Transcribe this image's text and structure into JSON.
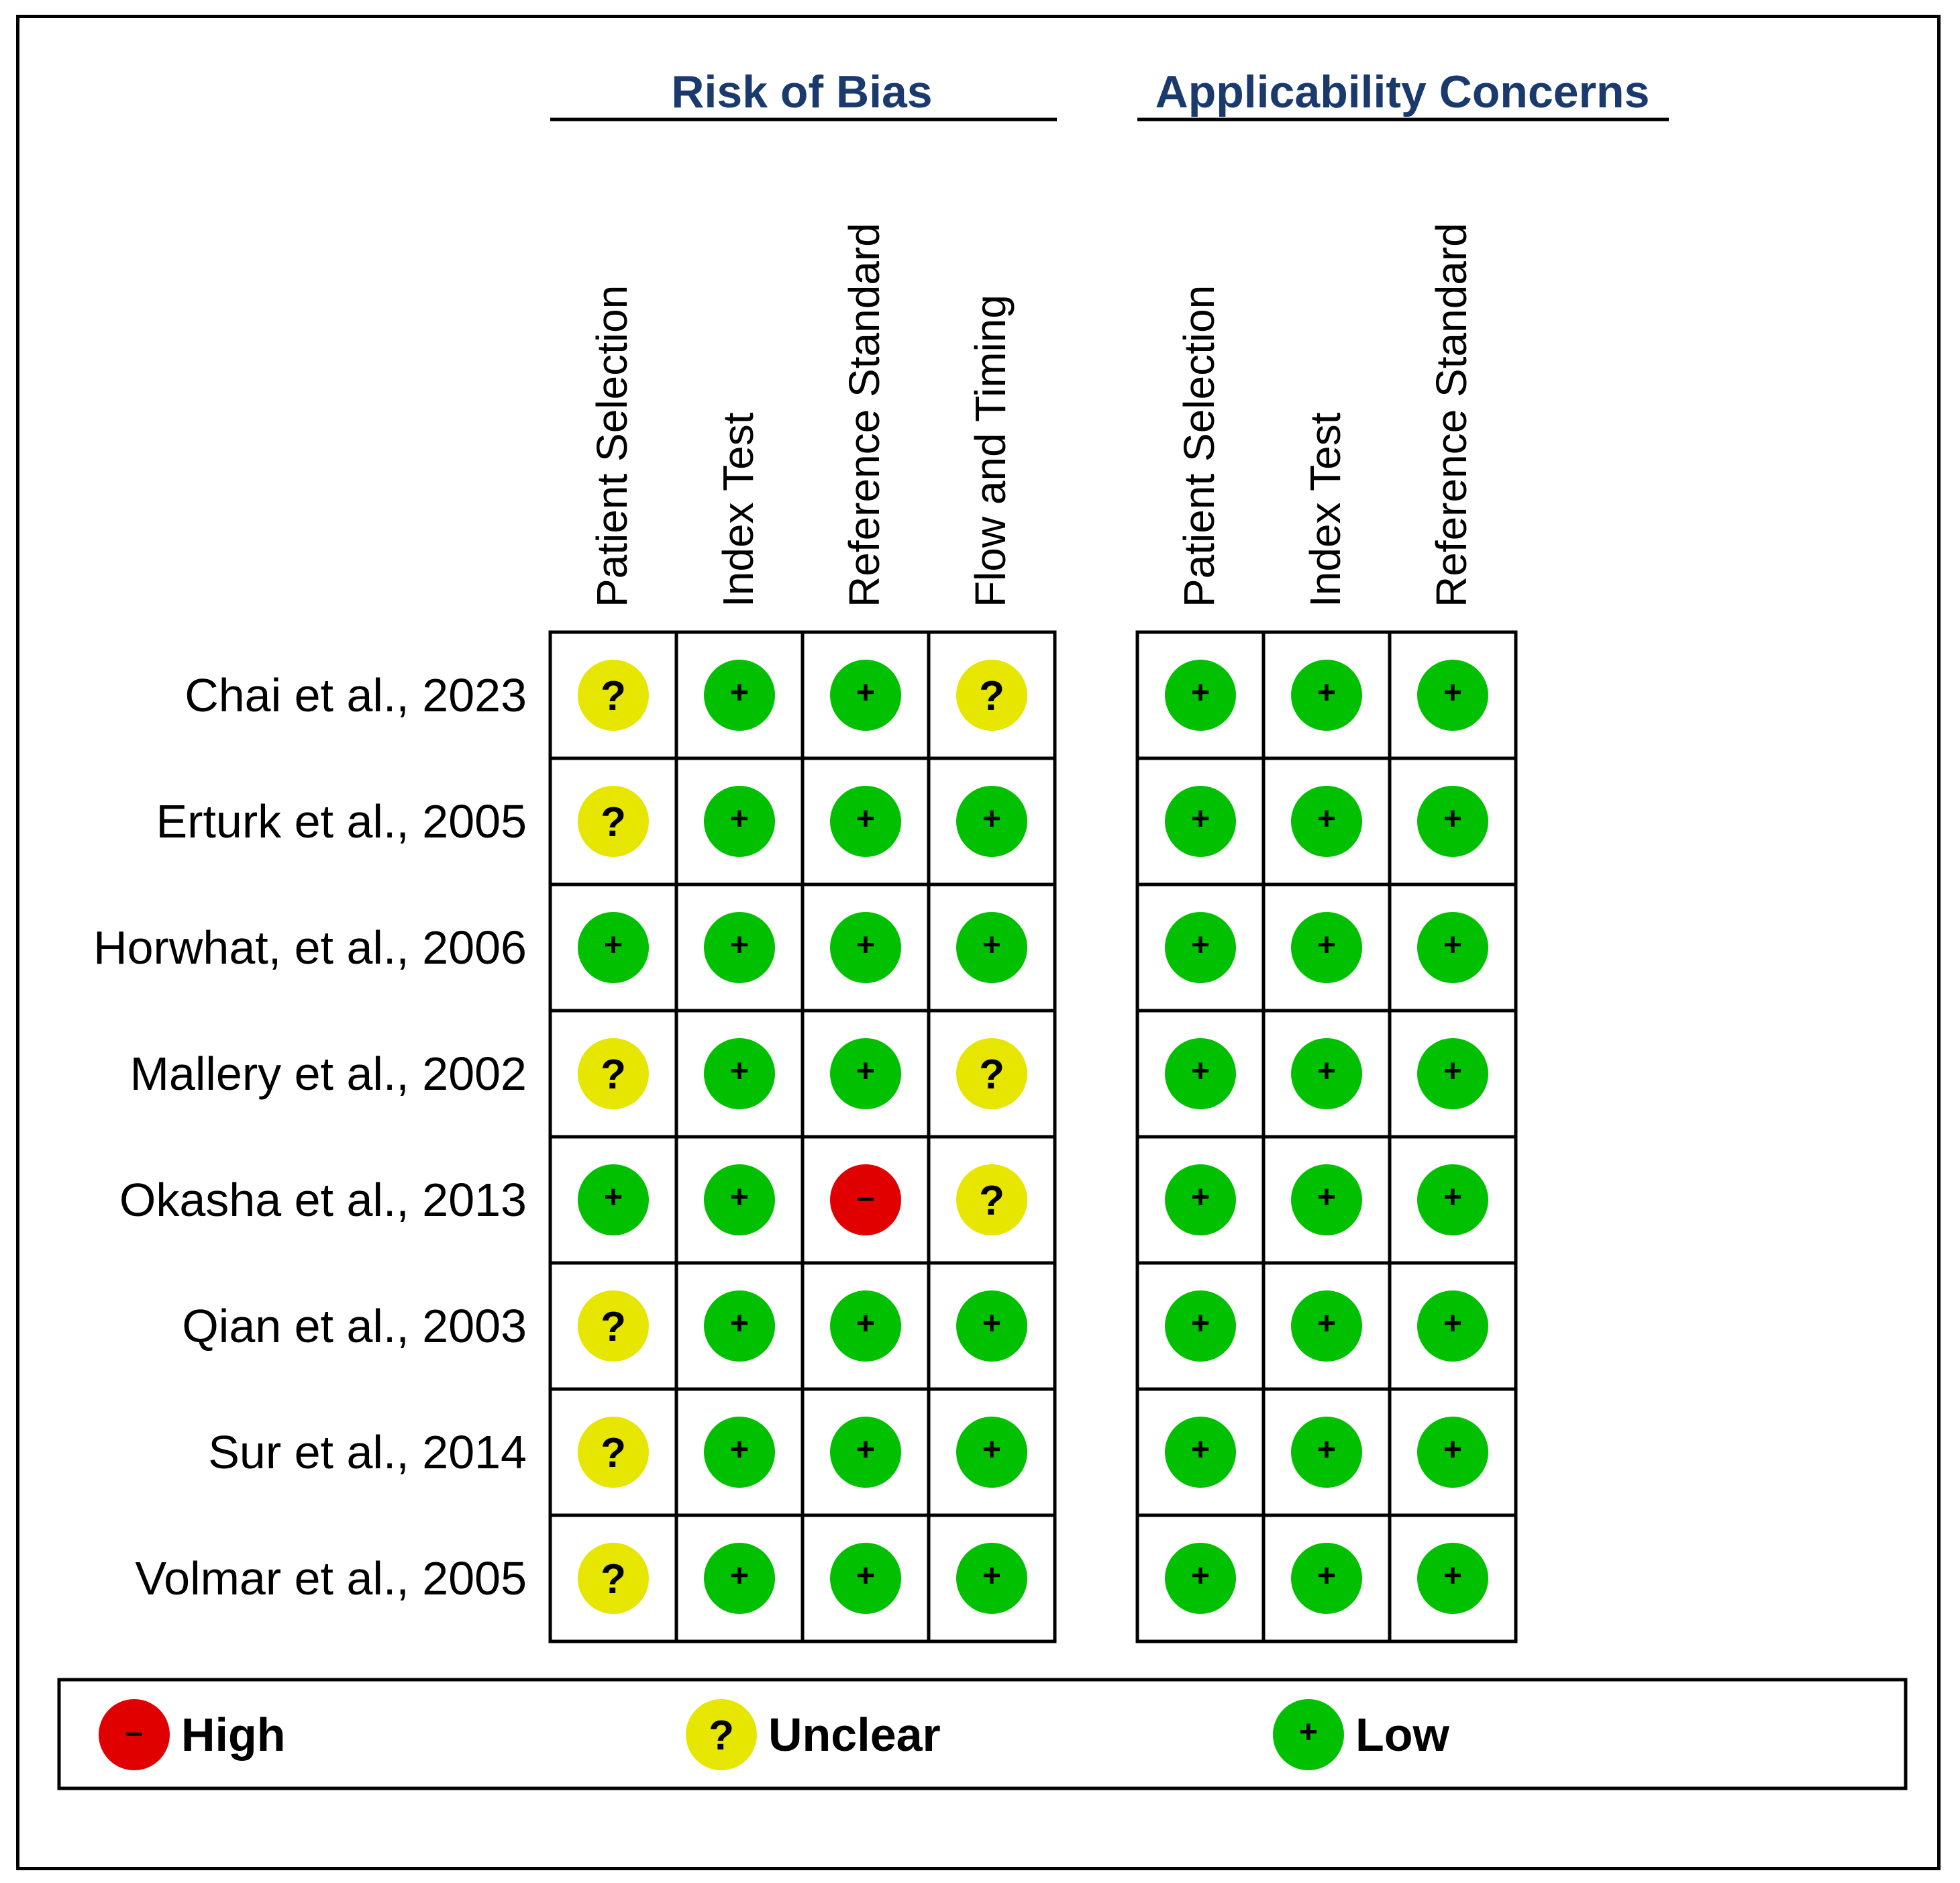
{
  "chart_data": {
    "type": "table",
    "groups": [
      {
        "title": "Risk of Bias",
        "columns": [
          "Patient Selection",
          "Index Test",
          "Reference Standard",
          "Flow and Timing"
        ]
      },
      {
        "title": "Applicability Concerns",
        "columns": [
          "Patient Selection",
          "Index Test",
          "Reference Standard"
        ]
      }
    ],
    "rows": [
      {
        "study": "Chai et al., 2023",
        "risk_of_bias": [
          "unclear",
          "low",
          "low",
          "unclear"
        ],
        "applicability": [
          "low",
          "low",
          "low"
        ]
      },
      {
        "study": "Erturk et al., 2005",
        "risk_of_bias": [
          "unclear",
          "low",
          "low",
          "low"
        ],
        "applicability": [
          "low",
          "low",
          "low"
        ]
      },
      {
        "study": "Horwhat, et al., 2006",
        "risk_of_bias": [
          "low",
          "low",
          "low",
          "low"
        ],
        "applicability": [
          "low",
          "low",
          "low"
        ]
      },
      {
        "study": "Mallery et al., 2002",
        "risk_of_bias": [
          "unclear",
          "low",
          "low",
          "unclear"
        ],
        "applicability": [
          "low",
          "low",
          "low"
        ]
      },
      {
        "study": "Okasha et al., 2013",
        "risk_of_bias": [
          "low",
          "low",
          "high",
          "unclear"
        ],
        "applicability": [
          "low",
          "low",
          "low"
        ]
      },
      {
        "study": "Qian et al., 2003",
        "risk_of_bias": [
          "unclear",
          "low",
          "low",
          "low"
        ],
        "applicability": [
          "low",
          "low",
          "low"
        ]
      },
      {
        "study": "Sur et al., 2014",
        "risk_of_bias": [
          "unclear",
          "low",
          "low",
          "low"
        ],
        "applicability": [
          "low",
          "low",
          "low"
        ]
      },
      {
        "study": "Volmar et al., 2005",
        "risk_of_bias": [
          "unclear",
          "low",
          "low",
          "low"
        ],
        "applicability": [
          "low",
          "low",
          "low"
        ]
      }
    ],
    "legend": [
      {
        "key": "high",
        "label": "High",
        "symbol": "–",
        "color": "#e00000"
      },
      {
        "key": "unclear",
        "label": "Unclear",
        "symbol": "?",
        "color": "#e6e600"
      },
      {
        "key": "low",
        "label": "Low",
        "symbol": "+",
        "color": "#00c000"
      }
    ],
    "legend_placement": "bottom",
    "group_title_color": "#1a3a6e"
  }
}
